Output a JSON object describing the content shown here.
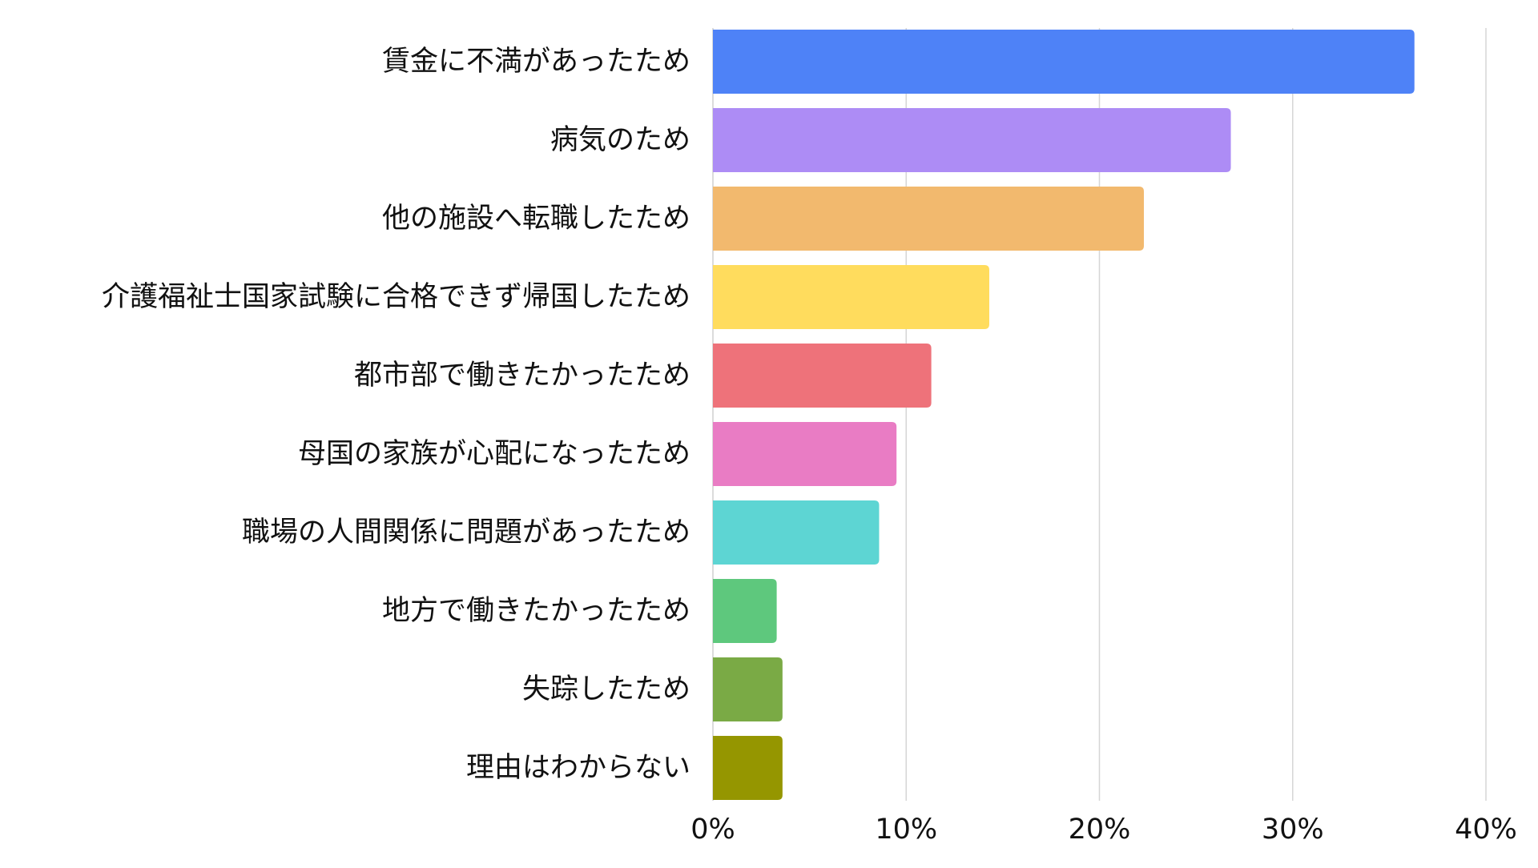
{
  "chart_data": {
    "type": "bar",
    "orientation": "horizontal",
    "title": "",
    "xlabel": "",
    "ylabel": "",
    "xlim": [
      0,
      40
    ],
    "x_ticks": [
      0,
      10,
      20,
      30,
      40
    ],
    "x_tick_labels": [
      "0%",
      "10%",
      "20%",
      "30%",
      "40%"
    ],
    "grid": "vertical",
    "legend": "none",
    "categories": [
      "賃金に不満があったため",
      "病気のため",
      "他の施設へ転職したため",
      "介護福祉士国家試験に合格できず帰国したため",
      "都市部で働きたかったため",
      "母国の家族が心配になったため",
      "職場の人間関係に問題があったため",
      "地方で働きたかったため",
      "失踪したため",
      "理由はわからない"
    ],
    "values": [
      36.3,
      26.8,
      22.3,
      14.3,
      11.3,
      9.5,
      8.6,
      3.3,
      3.6,
      3.6
    ],
    "colors": [
      "#4e82f7",
      "#ad8cf5",
      "#f2b96e",
      "#ffdc5d",
      "#ee727a",
      "#e97cc4",
      "#5dd5d3",
      "#5ec87d",
      "#7aaa45",
      "#959600"
    ],
    "grid_color": "#d6d6d6",
    "axis_color": "#cfcfcf"
  }
}
